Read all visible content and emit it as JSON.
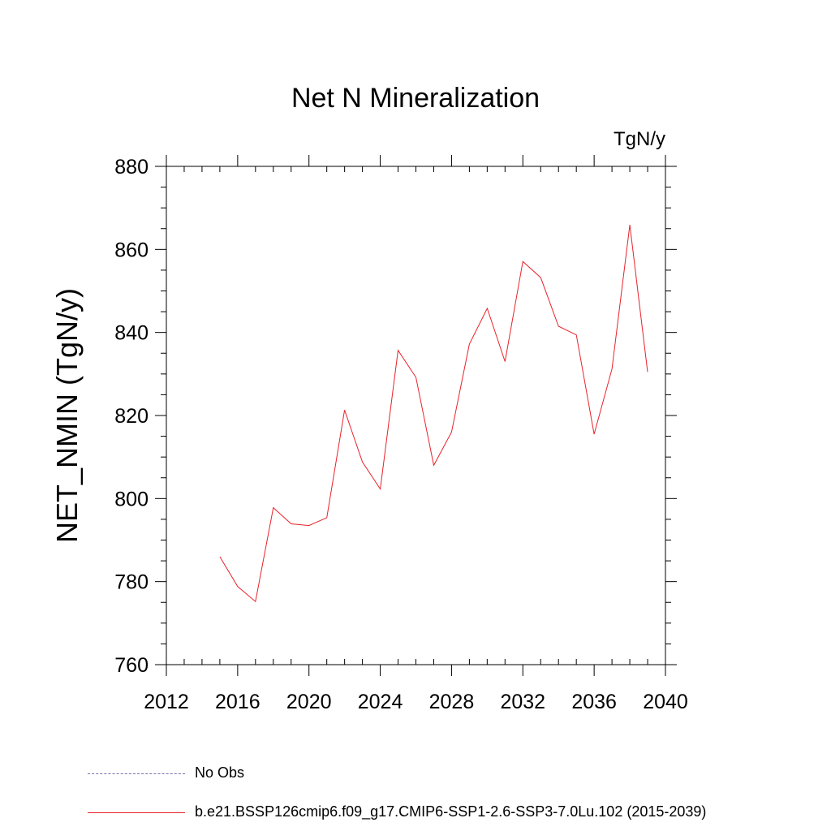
{
  "chart_data": {
    "type": "line",
    "title": "Net N Mineralization",
    "units_label": "TgN/y",
    "ylabel": "NET_NMIN  (TgN/y)",
    "xlabel": "",
    "xlim": [
      2012,
      2040
    ],
    "ylim": [
      760,
      880
    ],
    "x_ticks": [
      2012,
      2016,
      2020,
      2024,
      2028,
      2032,
      2036,
      2040
    ],
    "y_ticks": [
      760,
      780,
      800,
      820,
      840,
      860,
      880
    ],
    "grid": false,
    "legend_position": "bottom",
    "legend": [
      {
        "label": "No Obs",
        "style": "dashed",
        "color": "#7b6fae"
      },
      {
        "label": "b.e21.BSSP126cmip6.f09_g17.CMIP6-SSP1-2.6-SSP3-7.0Lu.102 (2015-2039)",
        "style": "solid",
        "color": "#e8222a"
      }
    ],
    "series": [
      {
        "name": "b.e21.BSSP126cmip6.f09_g17.CMIP6-SSP1-2.6-SSP3-7.0Lu.102 (2015-2039)",
        "color": "#e8222a",
        "x": [
          2015,
          2016,
          2017,
          2018,
          2019,
          2020,
          2021,
          2022,
          2023,
          2024,
          2025,
          2026,
          2027,
          2028,
          2029,
          2030,
          2031,
          2032,
          2033,
          2034,
          2035,
          2036,
          2037,
          2038,
          2039
        ],
        "values": [
          786,
          778.8,
          775.2,
          797.8,
          793.9,
          793.5,
          795.4,
          821.3,
          808.8,
          802.3,
          835.7,
          829.2,
          808.0,
          816.0,
          837.2,
          845.8,
          833.0,
          857.1,
          853.2,
          841.5,
          839.4,
          815.5,
          831.2,
          865.9,
          830.5
        ]
      }
    ]
  }
}
